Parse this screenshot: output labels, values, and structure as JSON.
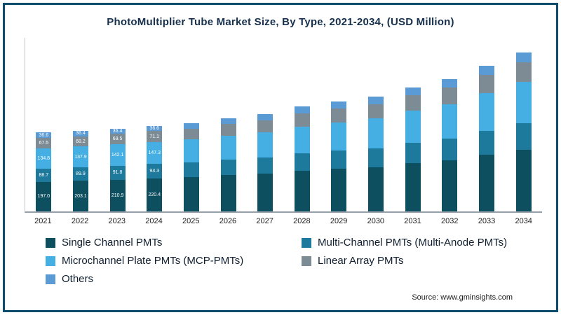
{
  "title": "PhotoMultiplier Tube Market Size, By Type, 2021-2034, (USD Million)",
  "source": "Source: www.gminsights.com",
  "chart_data": {
    "type": "bar",
    "stacked": true,
    "title": "PhotoMultiplier Tube Market Size, By Type, 2021-2034, (USD Million)",
    "xlabel": "",
    "ylabel": "USD Million",
    "grid": false,
    "legend_position": "bottom",
    "categories": [
      "2021",
      "2022",
      "2023",
      "2024",
      "2025",
      "2026",
      "2027",
      "2028",
      "2029",
      "2030",
      "2031",
      "2032",
      "2033",
      "2034"
    ],
    "series": [
      {
        "name": "Single Channel PMTs",
        "color": "#0d4e5f",
        "values": [
          197.0,
          203.1,
          210.9,
          220.4,
          228.0,
          240.0,
          252.0,
          270.0,
          283.0,
          295.0,
          319.0,
          341.0,
          375.0,
          410.0
        ]
      },
      {
        "name": "Multi-Channel PMTs (Multi-Anode PMTs)",
        "color": "#1d7a9c",
        "values": [
          88.7,
          89.9,
          91.8,
          94.3,
          97.0,
          102.0,
          107.0,
          115.0,
          120.0,
          126.0,
          136.0,
          145.0,
          160.0,
          175.0
        ]
      },
      {
        "name": "Microchannel Plate PMTs (MCP-PMTs)",
        "color": "#45aee2",
        "values": [
          134.8,
          137.9,
          142.1,
          147.3,
          152.0,
          161.0,
          168.0,
          180.0,
          189.0,
          197.0,
          213.0,
          228.0,
          251.0,
          274.0
        ]
      },
      {
        "name": "Linear Array PMTs",
        "color": "#7c8b94",
        "values": [
          67.5,
          68.2,
          69.5,
          71.1,
          73.0,
          77.0,
          80.0,
          86.0,
          90.0,
          94.0,
          102.0,
          109.0,
          120.0,
          131.0
        ]
      },
      {
        "name": "Others",
        "color": "#5b9bd5",
        "values": [
          36.6,
          36.4,
          36.4,
          36.6,
          38.0,
          40.0,
          42.0,
          45.0,
          47.0,
          49.0,
          53.0,
          56.0,
          62.0,
          68.0
        ]
      }
    ],
    "bar_labels": {
      "2021": [
        "197.0",
        "88.7",
        "134.8",
        "67.5",
        "36.6"
      ],
      "2022": [
        "203.1",
        "89.9",
        "137.9",
        "68.2",
        "36.4"
      ],
      "2023": [
        "210.9",
        "91.8",
        "142.1",
        "69.5",
        "36.4"
      ],
      "2024": [
        "220.4",
        "94.3",
        "147.3",
        "71.1",
        "36.6"
      ]
    },
    "notes": "Data labels shown only on 2021-2024 bars; 2025-2034 values estimated from bar heights."
  }
}
